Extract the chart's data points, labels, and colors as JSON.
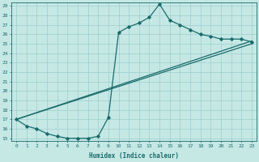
{
  "xlabel": "Humidex (Indice chaleur)",
  "bg_color": "#c5e8e5",
  "grid_color": "#9ecece",
  "line_color": "#1a6b6b",
  "xlim": [
    -0.5,
    23.5
  ],
  "ylim": [
    14.7,
    29.4
  ],
  "xticks": [
    0,
    1,
    2,
    3,
    4,
    5,
    6,
    7,
    8,
    9,
    10,
    11,
    12,
    13,
    14,
    15,
    16,
    17,
    18,
    19,
    20,
    21,
    22,
    23
  ],
  "yticks": [
    15,
    16,
    17,
    18,
    19,
    20,
    21,
    22,
    23,
    24,
    25,
    26,
    27,
    28,
    29
  ],
  "line1_x": [
    0,
    1,
    2,
    3,
    4,
    5,
    6,
    7,
    8,
    9,
    10,
    11,
    12,
    13,
    14,
    15,
    16,
    17,
    18,
    19,
    20,
    21,
    22,
    23
  ],
  "line1_y": [
    17.0,
    16.3,
    16.0,
    15.5,
    15.2,
    15.0,
    15.0,
    15.0,
    15.2,
    17.2,
    26.2,
    26.8,
    27.2,
    27.8,
    29.2,
    27.5,
    27.0,
    26.5,
    26.0,
    25.8,
    25.5,
    25.5,
    25.5,
    25.2
  ],
  "line2_x": [
    0,
    23
  ],
  "line2_y": [
    17.0,
    25.3
  ],
  "line3_x": [
    0,
    23
  ],
  "line3_y": [
    17.0,
    25.0
  ],
  "figsize": [
    3.2,
    2.0
  ],
  "dpi": 100
}
